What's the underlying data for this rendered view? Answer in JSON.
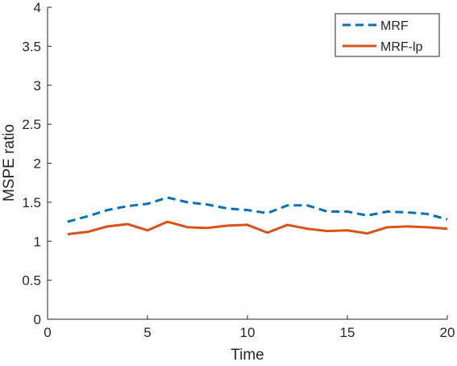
{
  "chart_data": {
    "type": "line",
    "title": "",
    "xlabel": "Time",
    "ylabel": "MSPE ratio",
    "xlim": [
      0,
      20
    ],
    "ylim": [
      0,
      4
    ],
    "xticks": [
      0,
      5,
      10,
      15,
      20
    ],
    "yticks": [
      0,
      0.5,
      1,
      1.5,
      2,
      2.5,
      3,
      3.5,
      4
    ],
    "xtick_labels": [
      "0",
      "5",
      "10",
      "15",
      "20"
    ],
    "ytick_labels": [
      "0",
      "0.5",
      "1",
      "1.5",
      "2",
      "2.5",
      "3",
      "3.5",
      "4"
    ],
    "grid": false,
    "legend_position": "top-right",
    "x": [
      1,
      2,
      3,
      4,
      5,
      6,
      7,
      8,
      9,
      10,
      11,
      12,
      13,
      14,
      15,
      16,
      17,
      18,
      19,
      20
    ],
    "series": [
      {
        "name": "MRF",
        "style": "dashed",
        "color": "#0072BD",
        "values": [
          1.25,
          1.32,
          1.4,
          1.45,
          1.48,
          1.56,
          1.5,
          1.47,
          1.42,
          1.4,
          1.36,
          1.46,
          1.46,
          1.38,
          1.38,
          1.33,
          1.38,
          1.37,
          1.35,
          1.28
        ]
      },
      {
        "name": "MRF-lp",
        "style": "solid",
        "color": "#D95319",
        "values": [
          1.09,
          1.12,
          1.19,
          1.22,
          1.14,
          1.25,
          1.18,
          1.17,
          1.2,
          1.21,
          1.11,
          1.21,
          1.16,
          1.13,
          1.14,
          1.1,
          1.18,
          1.19,
          1.18,
          1.16
        ]
      }
    ]
  }
}
